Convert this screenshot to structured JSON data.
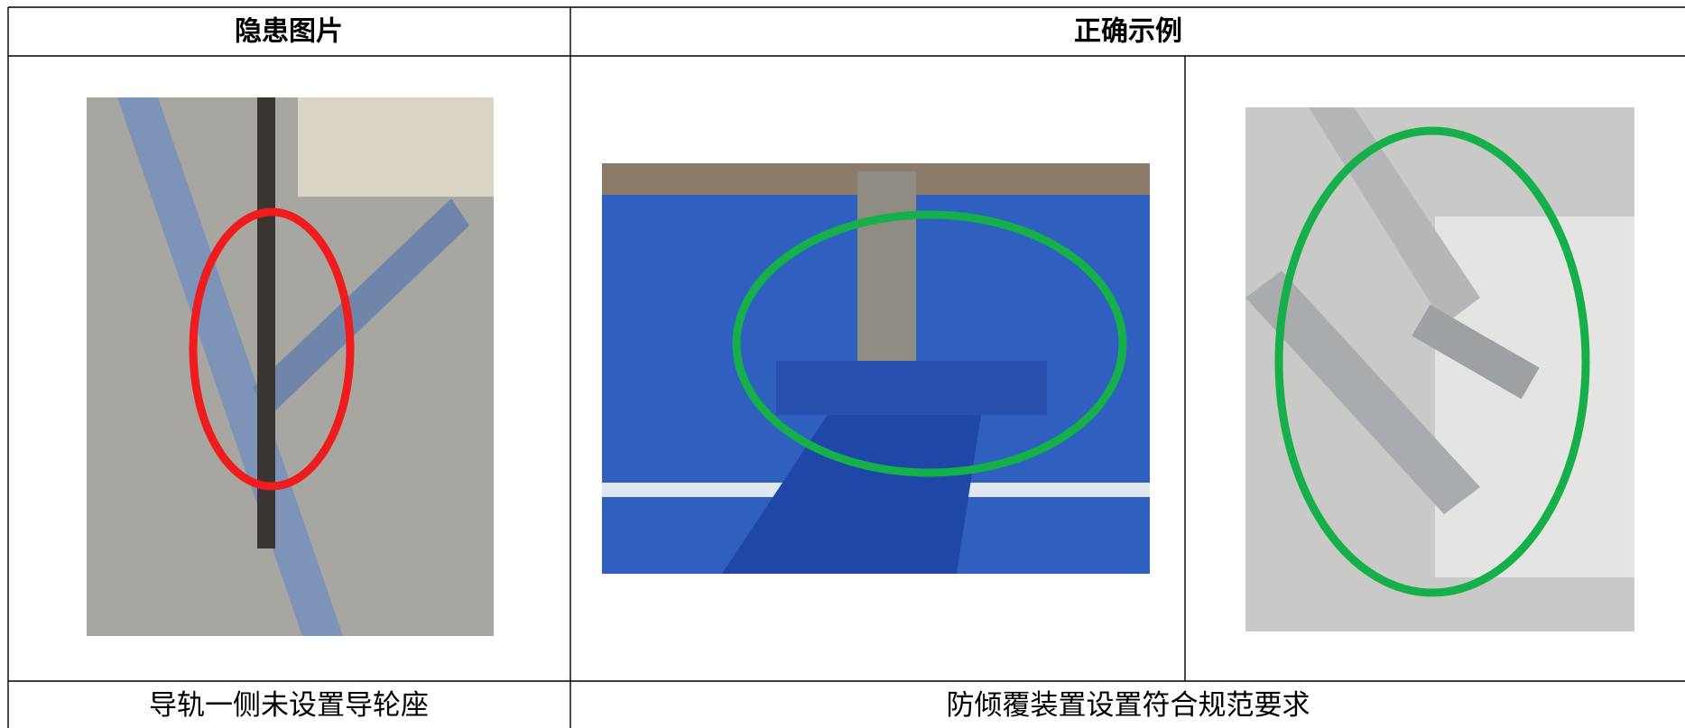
{
  "table": {
    "header": [
      "隐患图片",
      "正确示例"
    ],
    "captions": [
      "导轨一侧未设置导轮座",
      "防倾覆装置设置符合规范要求"
    ]
  }
}
